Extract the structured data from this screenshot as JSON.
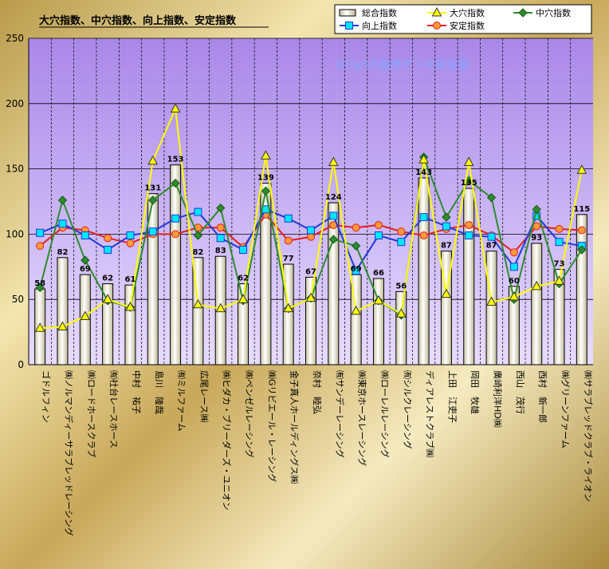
{
  "chart_data": {
    "type": "bar",
    "title": "大穴指数、中穴指数、向上指数、安定指数",
    "watermark": "©Cariの競馬データ研究室",
    "ylim": [
      0,
      250
    ],
    "yticks": [
      "0",
      "50",
      "100",
      "150",
      "200",
      "250"
    ],
    "categories": [
      "ゴドルフィン",
      "㈱ノルマンディーサラブレッドレーシング",
      "㈱ロードホースクラブ",
      "㈲社台レースホース",
      "中村　祐子",
      "島川　隆哉",
      "㈲ミルファーム",
      "広尾レース㈱",
      "㈱ヒダカ・ブリーダーズ・ユニオン",
      "㈱ペンゼルレーシング",
      "㈱Gリビエール・レーシング",
      "金子真人ホールディングス㈱",
      "奈村　睦弘",
      "㈲サンデーレーシング",
      "㈱東京ホースレーシング",
      "㈱ローレルレーシング",
      "㈲シルクレーシング",
      "ディアレストクラブ㈱",
      "上田　江吏子",
      "岡田　牧雄",
      "廣崎利洋HD㈱",
      "西山　茂行",
      "西村　新一郎",
      "㈱グリーンファーム",
      "㈱サラブレッドクラブ・ライオン"
    ],
    "series": [
      {
        "name": "総合指数",
        "kind": "bar",
        "color": "#f2eed5",
        "values": [
          58,
          82,
          69,
          62,
          61,
          131,
          153,
          82,
          83,
          62,
          139,
          77,
          67,
          124,
          69,
          66,
          56,
          143,
          87,
          135,
          87,
          60,
          93,
          73,
          115
        ],
        "labels": [
          "58",
          "82",
          "69",
          "62",
          "61",
          "131",
          "153",
          "82",
          "83",
          "62",
          "139",
          "77",
          "67",
          "124",
          "69",
          "66",
          "56",
          "143",
          "87",
          "135",
          "87",
          "60",
          "93",
          "73",
          "115"
        ]
      },
      {
        "name": "大穴指数",
        "kind": "line",
        "marker": "triangle",
        "color": "#ffff00",
        "values": [
          28,
          29,
          37,
          50,
          44,
          156,
          196,
          46,
          43,
          50,
          160,
          43,
          51,
          155,
          41,
          49,
          39,
          157,
          54,
          155,
          48,
          52,
          60,
          64,
          149
        ]
      },
      {
        "name": "中穴指数",
        "kind": "line",
        "marker": "diamond",
        "color": "#2e8b2e",
        "values": [
          59,
          126,
          80,
          49,
          44,
          126,
          139,
          99,
          120,
          49,
          133,
          43,
          51,
          96,
          91,
          49,
          38,
          159,
          113,
          141,
          128,
          50,
          119,
          62,
          88
        ]
      },
      {
        "name": "向上指数",
        "kind": "line",
        "marker": "square",
        "color": "#1f3bd6",
        "marker_fill": "#00e5ff",
        "values": [
          101,
          108,
          99,
          88,
          99,
          102,
          112,
          117,
          97,
          88,
          119,
          112,
          103,
          114,
          72,
          99,
          94,
          113,
          106,
          99,
          98,
          75,
          114,
          94,
          91
        ]
      },
      {
        "name": "安定指数",
        "kind": "line",
        "marker": "circle",
        "color": "#e02020",
        "marker_fill": "#ff9a3a",
        "values": [
          91,
          105,
          103,
          97,
          93,
          100,
          100,
          105,
          105,
          90,
          115,
          95,
          98,
          107,
          105,
          107,
          102,
          99,
          104,
          107,
          99,
          86,
          106,
          104,
          103
        ]
      }
    ],
    "legend": {
      "placement": "top-right",
      "items": [
        "総合指数",
        "大穴指数",
        "中穴指数",
        "向上指数",
        "安定指数"
      ]
    },
    "grid": true,
    "plot_background": "#b89cf0"
  }
}
